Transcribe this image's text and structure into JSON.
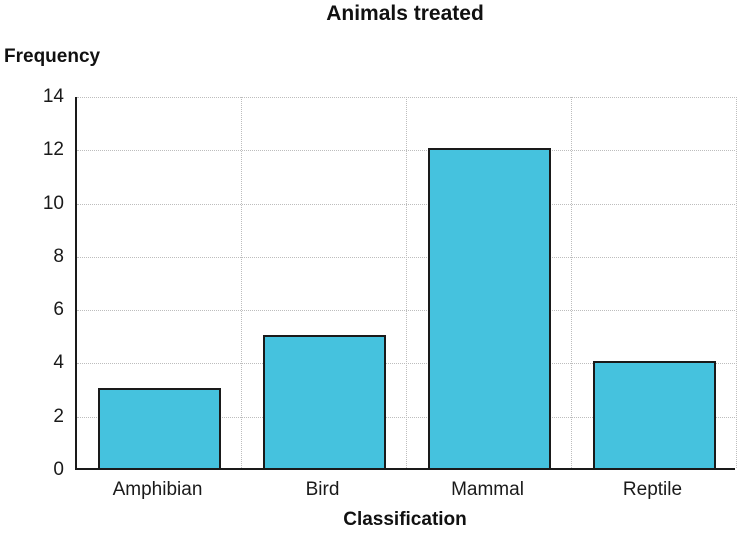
{
  "chart_data": {
    "type": "bar",
    "title": "Animals treated",
    "xlabel": "Classification",
    "ylabel": "Frequency",
    "categories": [
      "Amphibian",
      "Bird",
      "Mammal",
      "Reptile"
    ],
    "values": [
      3,
      5,
      12,
      4
    ],
    "ylim": [
      0,
      14
    ],
    "ytick_step": 2,
    "ytick_labels": [
      "0",
      "2",
      "4",
      "6",
      "8",
      "10",
      "12",
      "14"
    ],
    "grid": true,
    "legend": "none",
    "bar_color": "#45c2de",
    "bar_border_color": "#1a1a1a",
    "gridline_color": "#bdbdbd",
    "axis_color": "#1a1a1a"
  }
}
